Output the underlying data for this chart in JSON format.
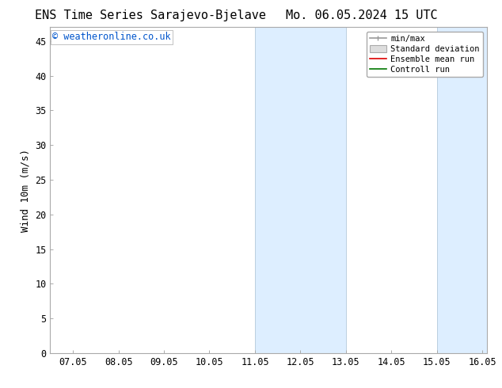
{
  "title_left": "ENS Time Series Sarajevo-Bjelave",
  "title_right": "Mo. 06.05.2024 15 UTC",
  "ylabel": "Wind 10m (m/s)",
  "watermark": "© weatheronline.co.uk",
  "watermark_color": "#0055cc",
  "xlim_left": 7.0,
  "xlim_right": 16.1,
  "ylim_bottom": 0,
  "ylim_top": 47,
  "yticks": [
    0,
    5,
    10,
    15,
    20,
    25,
    30,
    35,
    40,
    45
  ],
  "xtick_values": [
    7,
    8,
    9,
    10,
    11,
    12,
    13,
    14,
    15,
    16
  ],
  "xtick_labels": [
    "07.05",
    "08.05",
    "09.05",
    "10.05",
    "11.05",
    "12.05",
    "13.05",
    "14.05",
    "15.05",
    "16.05"
  ],
  "shaded_bands": [
    {
      "x_start": 11.0,
      "x_end": 13.0
    },
    {
      "x_start": 15.0,
      "x_end": 16.1
    }
  ],
  "shaded_color": "#ddeeff",
  "shaded_edge_color": "#bbcfe0",
  "legend_labels": [
    "min/max",
    "Standard deviation",
    "Ensemble mean run",
    "Controll run"
  ],
  "legend_line_colors": [
    "#999999",
    "#cccccc",
    "#dd0000",
    "#007700"
  ],
  "background_color": "#ffffff",
  "plot_bg_color": "#ffffff",
  "title_fontsize": 11,
  "axis_fontsize": 9,
  "tick_fontsize": 8.5,
  "watermark_fontsize": 8.5
}
